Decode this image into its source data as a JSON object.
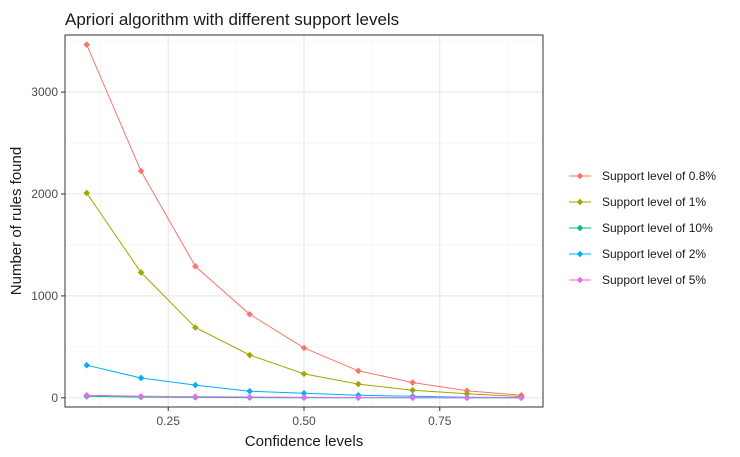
{
  "chart_data": {
    "type": "line",
    "title": "Apriori algorithm with different support levels",
    "xlabel": "Confidence levels",
    "ylabel": "Number of rules found",
    "x": [
      0.1,
      0.2,
      0.3,
      0.4,
      0.5,
      0.6,
      0.7,
      0.8,
      0.9
    ],
    "xlim": [
      0.06,
      0.94
    ],
    "ylim": [
      -90,
      3560
    ],
    "xticks": [
      0.25,
      0.5,
      0.75
    ],
    "xtick_labels": [
      "0.25",
      "0.50",
      "0.75"
    ],
    "yticks": [
      0,
      1000,
      2000,
      3000
    ],
    "ytick_labels": [
      "0",
      "1000",
      "2000",
      "3000"
    ],
    "grid": true,
    "legend_position": "right",
    "series": [
      {
        "name": "Support level of 0.8%",
        "color": "#F8766D",
        "values": [
          3465,
          2225,
          1290,
          820,
          490,
          265,
          150,
          70,
          25
        ]
      },
      {
        "name": "Support level of 1%",
        "color": "#A3A500",
        "values": [
          2010,
          1230,
          690,
          420,
          235,
          135,
          75,
          40,
          12
        ]
      },
      {
        "name": "Support level of 10%",
        "color": "#00BF7D",
        "values": [
          15,
          8,
          5,
          2,
          1,
          1,
          0,
          0,
          0
        ]
      },
      {
        "name": "Support level of 2%",
        "color": "#00B0F6",
        "values": [
          320,
          195,
          125,
          65,
          45,
          25,
          15,
          5,
          2
        ]
      },
      {
        "name": "Support level of 5%",
        "color": "#E76BF3",
        "values": [
          25,
          15,
          12,
          8,
          5,
          3,
          2,
          1,
          0
        ]
      }
    ]
  }
}
